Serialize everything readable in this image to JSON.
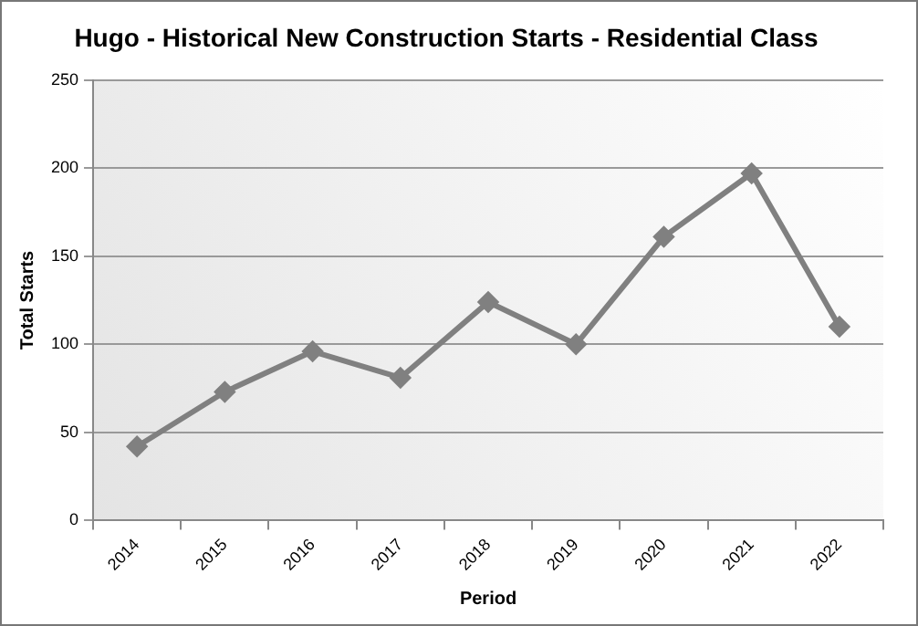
{
  "chart_data": {
    "type": "line",
    "title": "Hugo - Historical New Construction Starts - Residential Class",
    "xlabel": "Period",
    "ylabel": "Total Starts",
    "categories": [
      "2014",
      "2015",
      "2016",
      "2017",
      "2018",
      "2019",
      "2020",
      "2021",
      "2022"
    ],
    "series": [
      {
        "color": "#808080",
        "values": [
          42,
          73,
          96,
          81,
          124,
          100,
          161,
          197,
          110
        ]
      }
    ],
    "ylim": [
      0,
      250
    ],
    "yticks": [
      0,
      50,
      100,
      150,
      200,
      250
    ],
    "grid": "y",
    "legend": false,
    "marker": "diamond",
    "line_style": "solid"
  }
}
